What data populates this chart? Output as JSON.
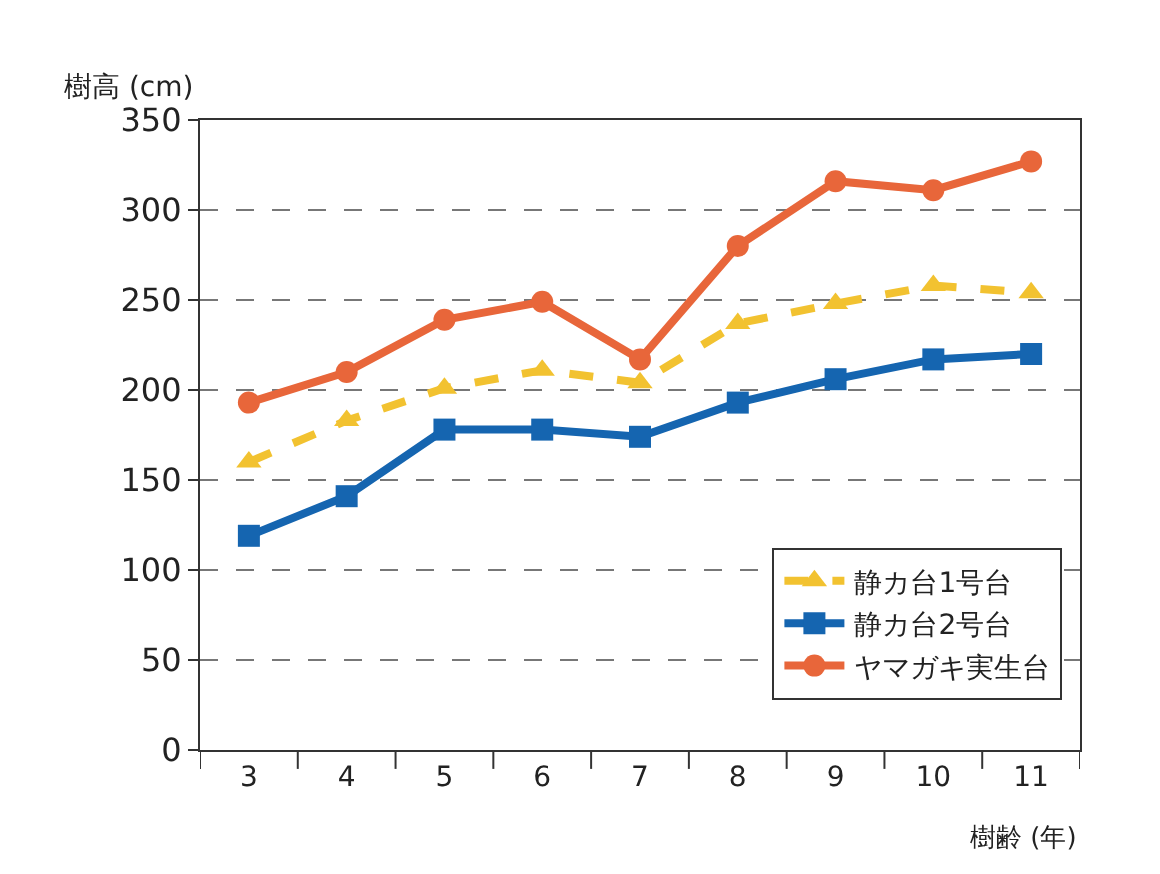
{
  "chart_data": {
    "type": "line",
    "ylabel": "樹高 (cm)",
    "xlabel": "樹齢 (年)",
    "categories": [
      "3",
      "4",
      "5",
      "6",
      "7",
      "8",
      "9",
      "10",
      "11"
    ],
    "ylim": [
      0,
      350
    ],
    "yticks": [
      0,
      50,
      100,
      150,
      200,
      250,
      300,
      350
    ],
    "grid": "y",
    "legend": "bottom right",
    "series": [
      {
        "name": "静カ台1号台",
        "color": "#f2c230",
        "marker": "triangle",
        "line_style": "dashed",
        "values": [
          160,
          183,
          201,
          211,
          204,
          237,
          248,
          258,
          254
        ]
      },
      {
        "name": "静カ台2号台",
        "color": "#1565b0",
        "marker": "square",
        "line_style": "solid",
        "values": [
          119,
          141,
          178,
          178,
          174,
          193,
          206,
          217,
          220
        ]
      },
      {
        "name": "ヤマガキ実生台",
        "color": "#e8663a",
        "marker": "circle",
        "line_style": "solid",
        "values": [
          193,
          210,
          239,
          249,
          217,
          280,
          316,
          311,
          327
        ]
      }
    ]
  }
}
